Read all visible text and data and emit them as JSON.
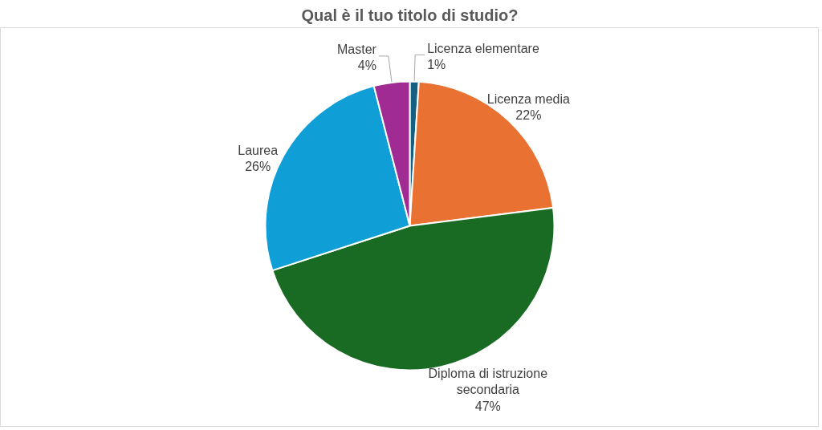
{
  "chart_data": {
    "type": "pie",
    "title": "Qual è il tuo titolo di studio?",
    "categories": [
      "Licenza elementare",
      "Licenza media",
      "Diploma di istruzione secondaria",
      "Laurea",
      "Master"
    ],
    "values": [
      1,
      22,
      47,
      26,
      4
    ],
    "colors": [
      "#156082",
      "#e97132",
      "#196b24",
      "#0f9ed5",
      "#a02b93"
    ],
    "value_labels": [
      "1%",
      "22%",
      "47%",
      "26%",
      "4%"
    ]
  }
}
